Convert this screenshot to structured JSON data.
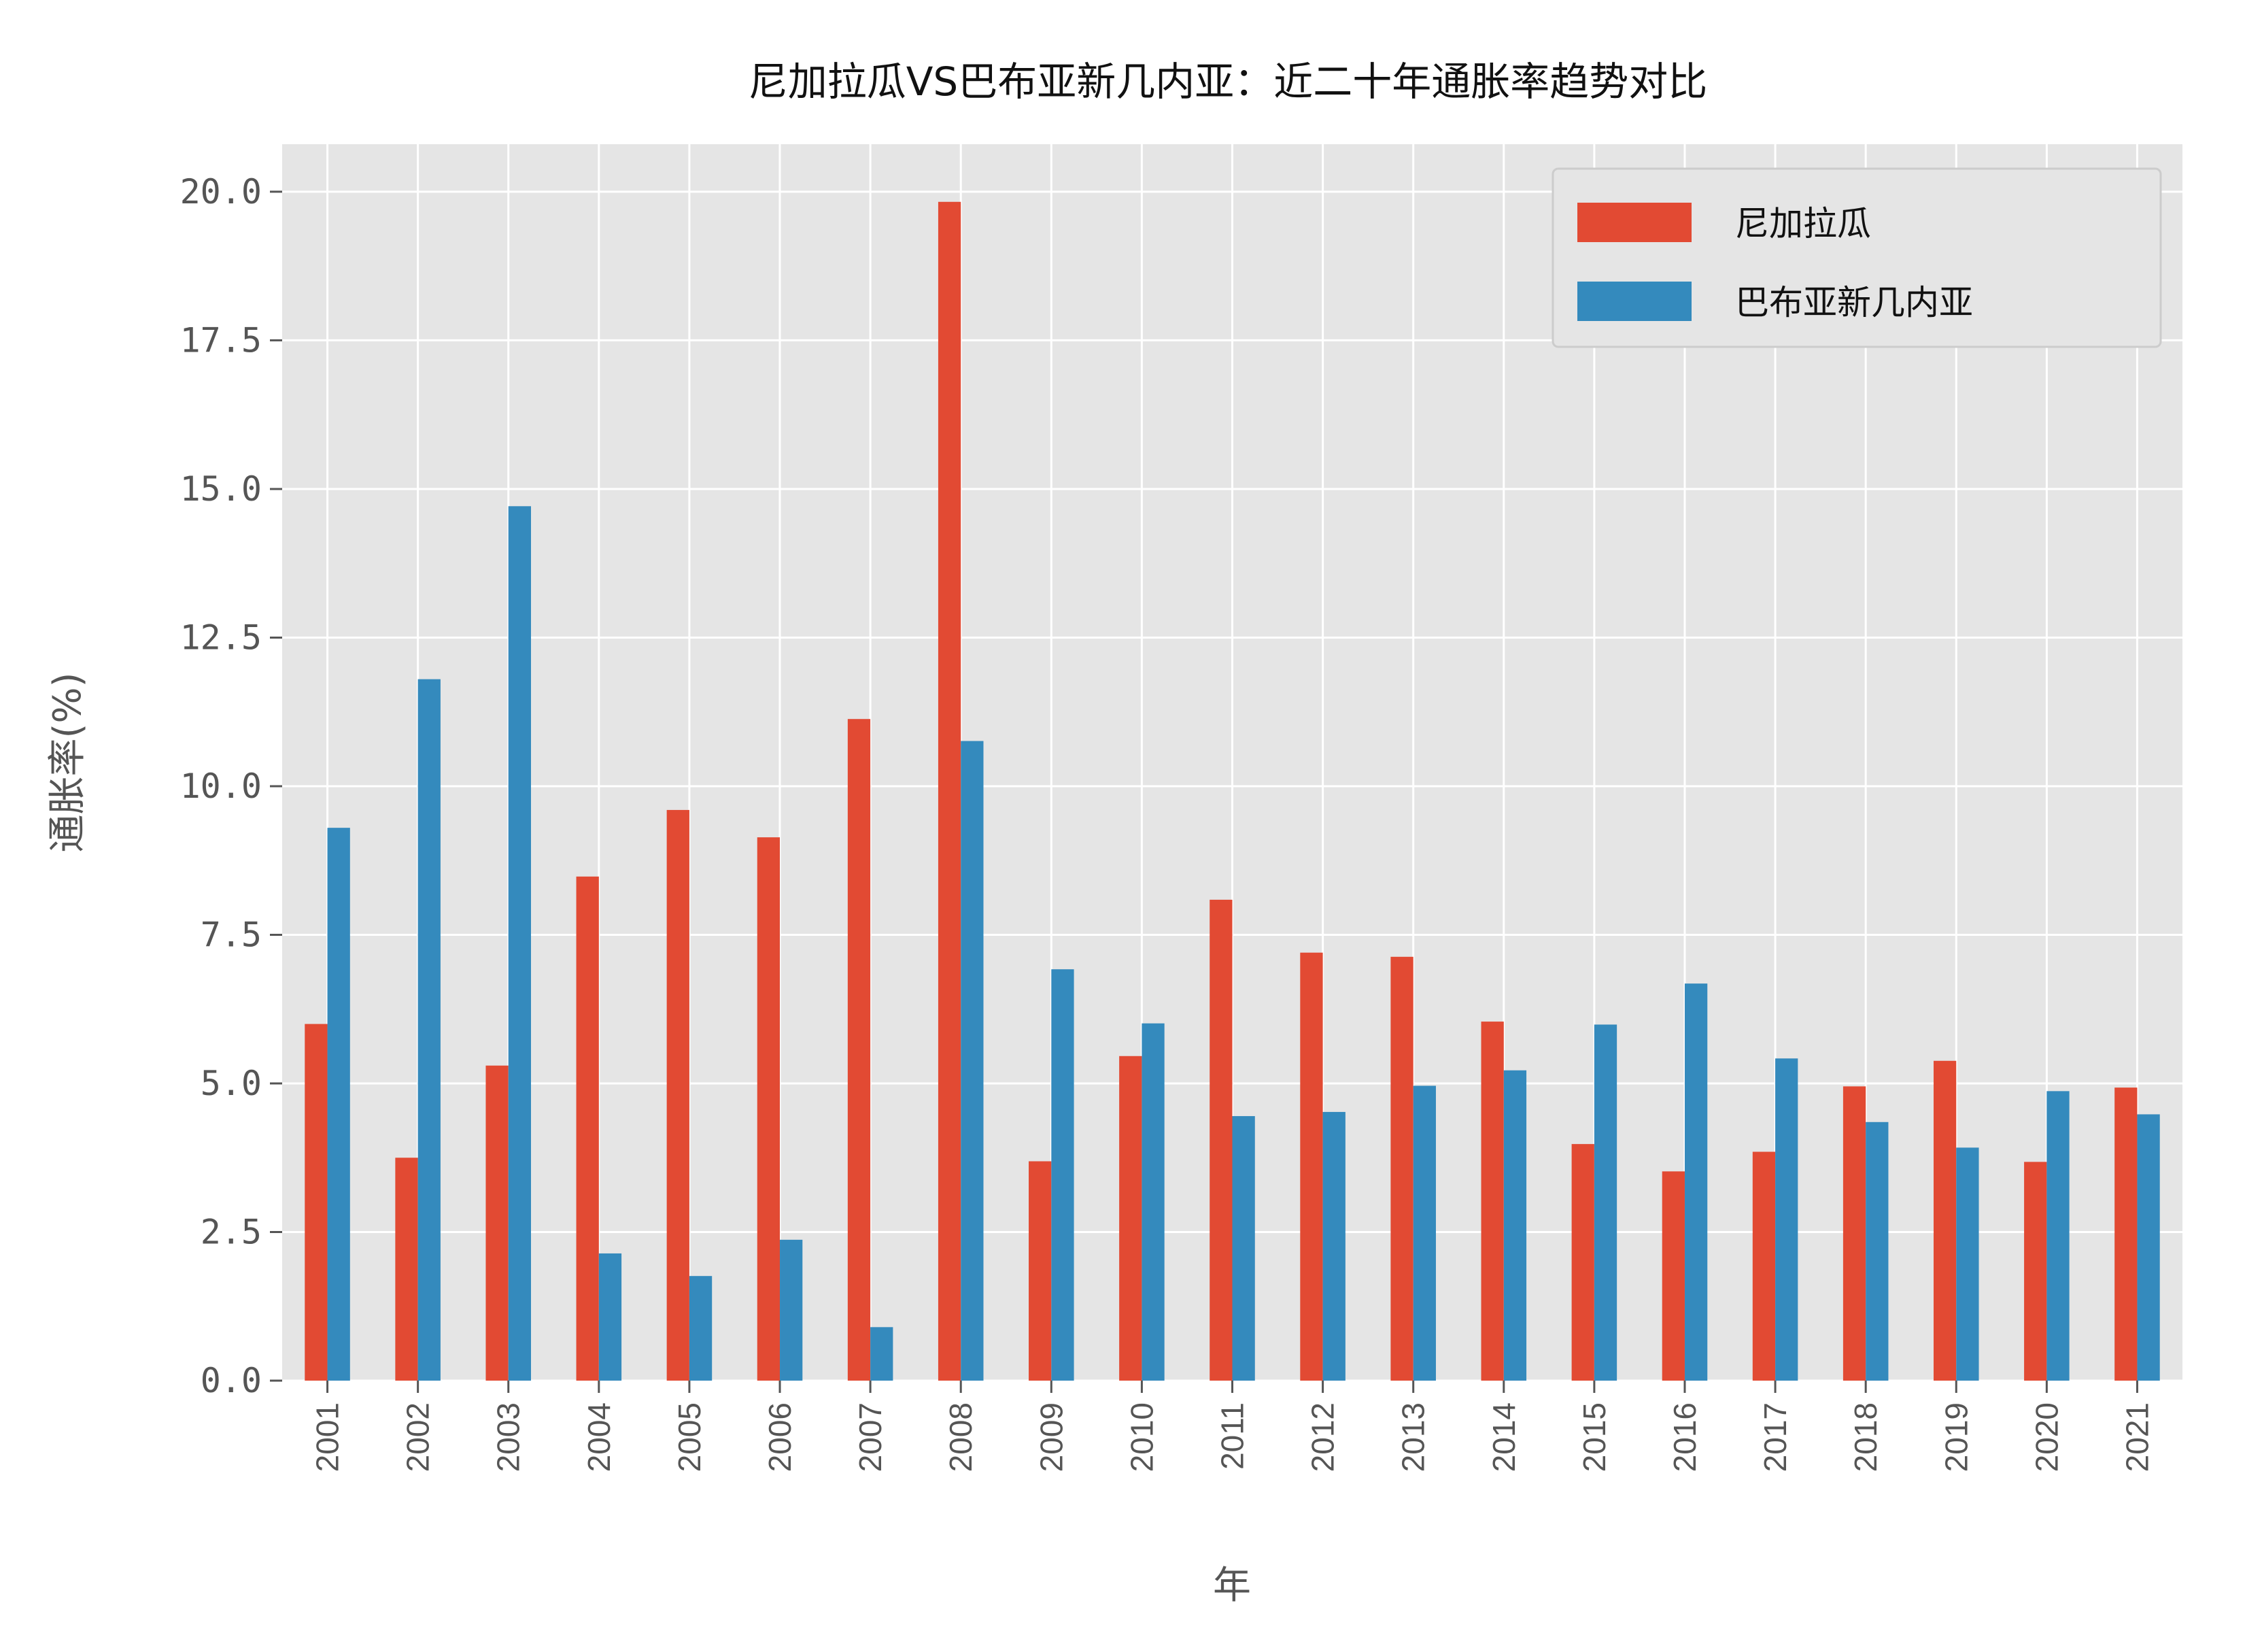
{
  "chart_data": {
    "type": "bar",
    "title": "尼加拉瓜VS巴布亚新几内亚：近二十年通胀率趋势对比",
    "xlabel": "年",
    "ylabel": "通胀率(%)",
    "ylim": [
      0,
      20.8
    ],
    "yticks": [
      "0.0",
      "2.5",
      "5.0",
      "7.5",
      "10.0",
      "12.5",
      "15.0",
      "17.5",
      "20.0"
    ],
    "ytick_values": [
      0,
      2.5,
      5,
      7.5,
      10,
      12.5,
      15,
      17.5,
      20
    ],
    "categories": [
      "2001",
      "2002",
      "2003",
      "2004",
      "2005",
      "2006",
      "2007",
      "2008",
      "2009",
      "2010",
      "2011",
      "2012",
      "2013",
      "2014",
      "2015",
      "2016",
      "2017",
      "2018",
      "2019",
      "2020",
      "2021"
    ],
    "series": [
      {
        "name": "尼加拉瓜",
        "color": "#E24A33",
        "values": [
          6.0,
          3.75,
          5.3,
          8.48,
          9.6,
          9.14,
          11.13,
          19.83,
          3.69,
          5.46,
          8.09,
          7.2,
          7.13,
          6.04,
          3.98,
          3.52,
          3.85,
          4.95,
          5.38,
          3.68,
          4.93
        ]
      },
      {
        "name": "巴布亚新几内亚",
        "color": "#348ABD",
        "values": [
          9.3,
          11.8,
          14.71,
          2.14,
          1.76,
          2.37,
          0.9,
          10.76,
          6.92,
          6.01,
          4.45,
          4.52,
          4.96,
          5.22,
          5.99,
          6.68,
          5.42,
          4.35,
          3.92,
          4.87,
          4.48
        ]
      }
    ],
    "grid": true,
    "legend_position": "top-right",
    "background_color": "#E5E5E5",
    "grid_color": "#FFFFFF"
  }
}
